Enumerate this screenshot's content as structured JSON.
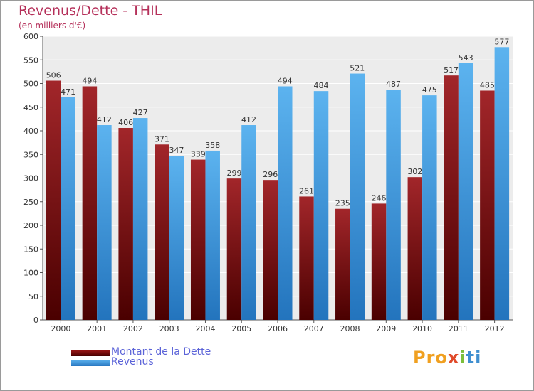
{
  "header": {
    "title": "Revenus/Dette - THIL",
    "subtitle": "(en milliers d'€)"
  },
  "colors": {
    "dette": "#6d0b0b",
    "revenus": "#3f96dc",
    "title": "#b5305a",
    "legend_text": "#5b63d8",
    "frame": "#9a9a9a"
  },
  "legend": {
    "items": [
      {
        "label": "Montant de la Dette",
        "color": "#6d0b0b"
      },
      {
        "label": "Revenus",
        "color": "#3f96dc"
      }
    ]
  },
  "logo": {
    "parts": [
      "Pro",
      "x",
      "i",
      "ti"
    ]
  },
  "chart_data": {
    "type": "bar",
    "title": "Revenus/Dette - THIL",
    "ylabel": "(en milliers d'€)",
    "xlabel": "",
    "categories": [
      "2000",
      "2001",
      "2002",
      "2003",
      "2004",
      "2005",
      "2006",
      "2007",
      "2008",
      "2009",
      "2010",
      "2011",
      "2012"
    ],
    "series": [
      {
        "name": "Montant de la Dette",
        "values": [
          506,
          494,
          406,
          371,
          339,
          299,
          296,
          261,
          235,
          246,
          302,
          517,
          485
        ]
      },
      {
        "name": "Revenus",
        "values": [
          471,
          412,
          427,
          347,
          358,
          412,
          494,
          484,
          521,
          487,
          475,
          543,
          577
        ]
      }
    ],
    "ylim": [
      0,
      600
    ],
    "yticks": [
      0,
      50,
      100,
      150,
      200,
      250,
      300,
      350,
      400,
      450,
      500,
      550,
      600
    ],
    "grid": true,
    "legend_position": "bottom-left"
  }
}
